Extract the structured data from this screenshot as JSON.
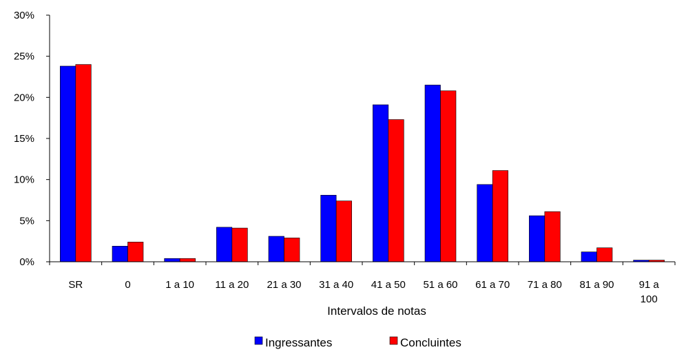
{
  "chart_data": {
    "type": "bar",
    "title": "",
    "xlabel": "Intervalos de notas",
    "ylabel": "",
    "ylim": [
      0,
      30
    ],
    "yticks": [
      "0%",
      "5%",
      "10%",
      "15%",
      "20%",
      "25%",
      "30%"
    ],
    "categories": [
      [
        "SR"
      ],
      [
        "0"
      ],
      [
        "1 a 10"
      ],
      [
        "11 a 20"
      ],
      [
        "21 a 30"
      ],
      [
        "31 a 40"
      ],
      [
        "41 a 50"
      ],
      [
        "51 a 60"
      ],
      [
        "61 a 70"
      ],
      [
        "71 a 80"
      ],
      [
        "81 a 90"
      ],
      [
        "91 a",
        "100"
      ]
    ],
    "series": [
      {
        "name": "Ingressantes",
        "color": "#0000ff",
        "values": [
          23.8,
          1.9,
          0.4,
          4.2,
          3.1,
          8.1,
          19.1,
          21.5,
          9.4,
          5.6,
          1.2,
          0.2
        ]
      },
      {
        "name": "Concluintes",
        "color": "#ff0000",
        "values": [
          24.0,
          2.4,
          0.4,
          4.1,
          2.9,
          7.4,
          17.3,
          20.8,
          11.1,
          6.1,
          1.7,
          0.2
        ]
      }
    ],
    "grid": false,
    "legend_position": "bottom-center"
  }
}
